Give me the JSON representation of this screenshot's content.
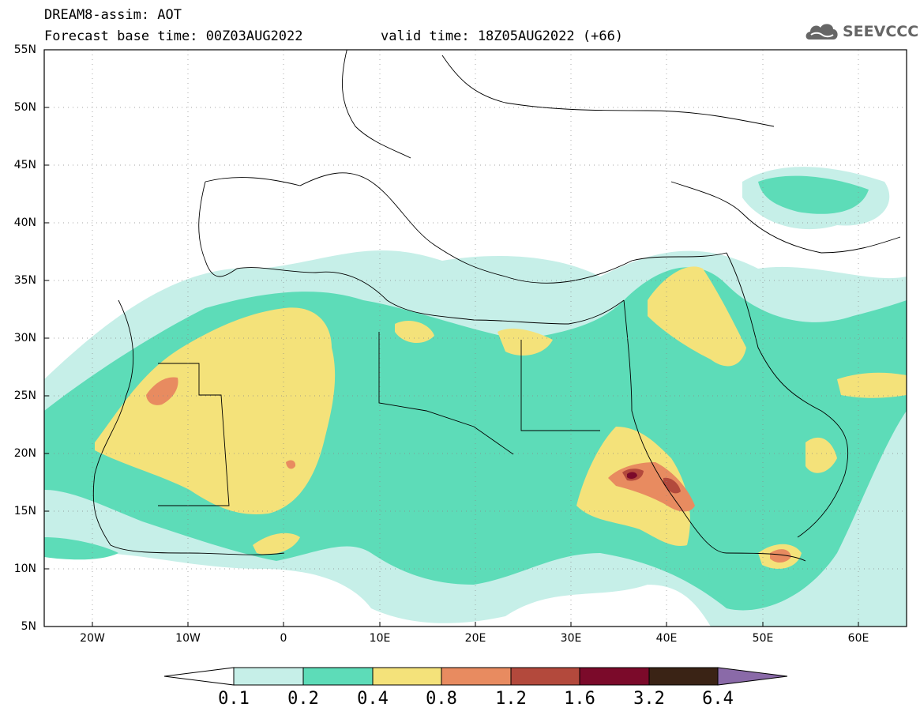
{
  "header": {
    "line1": "DREAM8-assim: AOT",
    "line2": "Forecast base time: 00Z03AUG2022",
    "valid_time": "valid time: 18Z05AUG2022 (+66)"
  },
  "logo": {
    "text": "SEEVCCC",
    "icon": "cloud-icon"
  },
  "map": {
    "lat_labels": [
      "55N",
      "50N",
      "45N",
      "40N",
      "35N",
      "30N",
      "25N",
      "20N",
      "15N",
      "10N",
      "5N"
    ],
    "lon_labels": [
      "20W",
      "10W",
      "0",
      "10E",
      "20E",
      "30E",
      "40E",
      "50E",
      "60E"
    ],
    "lat_range": [
      5,
      55
    ],
    "lon_range": [
      -25,
      65
    ]
  },
  "colorbar": {
    "labels": [
      "0.1",
      "0.2",
      "0.4",
      "0.8",
      "1.2",
      "1.6",
      "3.2",
      "6.4"
    ],
    "colors": [
      "#c6efe8",
      "#5ddcb8",
      "#f4e27a",
      "#e88b60",
      "#b3493c",
      "#7b0a2a",
      "#3a2315",
      "#8a6aa8"
    ]
  }
}
